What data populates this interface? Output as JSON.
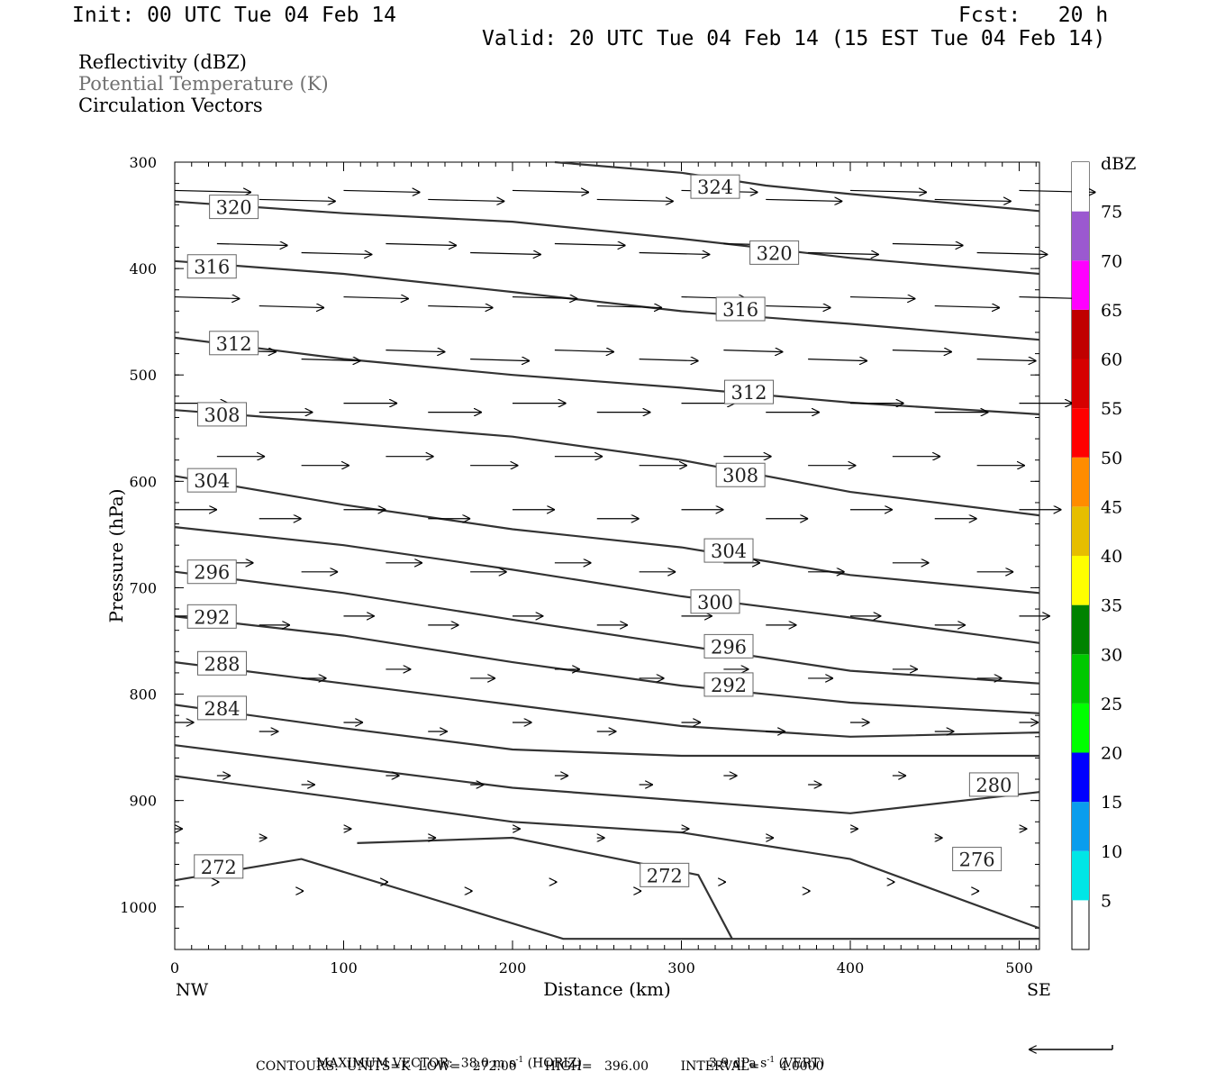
{
  "header": {
    "init": "Init: 00 UTC Tue 04 Feb 14",
    "fcst": "Fcst:   20 h",
    "valid": "Valid: 20 UTC Tue 04 Feb 14 (15 EST Tue 04 Feb 14)"
  },
  "legend": {
    "line1": "Reflectivity (dBZ)",
    "line2": "Potential Temperature (K)",
    "line3": "Circulation Vectors"
  },
  "chart_data": {
    "type": "line",
    "plot": "vertical cross-section",
    "xlabel": "Distance (km)",
    "ylabel": "Pressure (hPa)",
    "xlim": [
      0,
      512
    ],
    "ylim": [
      1040,
      300
    ],
    "x_ticks": [
      "0",
      "100",
      "200",
      "300",
      "400",
      "500"
    ],
    "y_ticks": [
      "300",
      "400",
      "500",
      "600",
      "700",
      "800",
      "900",
      "1000"
    ],
    "x_ends": {
      "left": "NW",
      "right": "SE"
    },
    "series": [
      {
        "name": "324",
        "label_at": [
          320,
          323
        ],
        "points": [
          [
            225,
            300
          ],
          [
            300,
            310
          ],
          [
            350,
            322
          ],
          [
            400,
            330
          ],
          [
            512,
            346
          ]
        ]
      },
      {
        "name": "320",
        "label_at": [
          35,
          342
        ],
        "points": [
          [
            0,
            337
          ],
          [
            100,
            348
          ],
          [
            200,
            356
          ],
          [
            300,
            372
          ],
          [
            400,
            390
          ],
          [
            512,
            405
          ]
        ]
      },
      {
        "name": "320",
        "label_at": [
          355,
          385
        ],
        "points": []
      },
      {
        "name": "316",
        "label_at": [
          22,
          398
        ],
        "points": [
          [
            0,
            393
          ],
          [
            100,
            405
          ],
          [
            200,
            422
          ],
          [
            300,
            440
          ],
          [
            400,
            452
          ],
          [
            512,
            467
          ]
        ]
      },
      {
        "name": "316",
        "label_at": [
          335,
          438
        ],
        "points": []
      },
      {
        "name": "312",
        "label_at": [
          35,
          470
        ],
        "points": [
          [
            0,
            465
          ],
          [
            100,
            485
          ],
          [
            200,
            500
          ],
          [
            300,
            512
          ],
          [
            400,
            526
          ],
          [
            512,
            537
          ]
        ]
      },
      {
        "name": "312",
        "label_at": [
          340,
          516
        ],
        "points": []
      },
      {
        "name": "308",
        "label_at": [
          28,
          537
        ],
        "points": [
          [
            0,
            533
          ],
          [
            100,
            545
          ],
          [
            200,
            558
          ],
          [
            300,
            580
          ],
          [
            400,
            610
          ],
          [
            512,
            632
          ]
        ]
      },
      {
        "name": "308",
        "label_at": [
          335,
          594
        ],
        "points": []
      },
      {
        "name": "304",
        "label_at": [
          22,
          599
        ],
        "points": [
          [
            0,
            595
          ],
          [
            100,
            622
          ],
          [
            200,
            645
          ],
          [
            300,
            662
          ],
          [
            400,
            688
          ],
          [
            512,
            705
          ]
        ]
      },
      {
        "name": "304",
        "label_at": [
          328,
          665
        ],
        "points": []
      },
      {
        "name": "300",
        "label_at": [
          320,
          713
        ],
        "points": [
          [
            0,
            643
          ],
          [
            100,
            660
          ],
          [
            200,
            683
          ],
          [
            300,
            708
          ],
          [
            400,
            728
          ],
          [
            512,
            752
          ]
        ]
      },
      {
        "name": "296",
        "label_at": [
          22,
          685
        ],
        "points": [
          [
            0,
            685
          ],
          [
            100,
            705
          ],
          [
            200,
            730
          ],
          [
            300,
            754
          ],
          [
            400,
            778
          ],
          [
            512,
            790
          ]
        ]
      },
      {
        "name": "296",
        "label_at": [
          328,
          755
        ],
        "points": []
      },
      {
        "name": "292",
        "label_at": [
          22,
          727
        ],
        "points": [
          [
            0,
            727
          ],
          [
            100,
            745
          ],
          [
            200,
            770
          ],
          [
            300,
            792
          ],
          [
            400,
            808
          ],
          [
            512,
            818
          ]
        ]
      },
      {
        "name": "292",
        "label_at": [
          328,
          791
        ],
        "points": []
      },
      {
        "name": "288",
        "label_at": [
          28,
          771
        ],
        "points": [
          [
            0,
            770
          ],
          [
            100,
            790
          ],
          [
            200,
            810
          ],
          [
            300,
            830
          ],
          [
            400,
            840
          ],
          [
            512,
            836
          ]
        ]
      },
      {
        "name": "284",
        "label_at": [
          28,
          813
        ],
        "points": [
          [
            0,
            810
          ],
          [
            100,
            832
          ],
          [
            200,
            852
          ],
          [
            300,
            858
          ],
          [
            400,
            858
          ],
          [
            512,
            858
          ]
        ]
      },
      {
        "name": "280",
        "label_at": [
          485,
          885
        ],
        "points": [
          [
            0,
            848
          ],
          [
            100,
            868
          ],
          [
            200,
            888
          ],
          [
            300,
            900
          ],
          [
            400,
            912
          ],
          [
            512,
            892
          ]
        ]
      },
      {
        "name": "276",
        "label_at": [
          475,
          955
        ],
        "points": [
          [
            0,
            877
          ],
          [
            100,
            898
          ],
          [
            200,
            920
          ],
          [
            300,
            930
          ],
          [
            400,
            955
          ],
          [
            512,
            1020
          ]
        ]
      },
      {
        "name": "272",
        "label_at": [
          26,
          962
        ],
        "points": [
          [
            0,
            975
          ],
          [
            75,
            955
          ],
          [
            230,
            1030
          ],
          [
            512,
            1030
          ]
        ]
      },
      {
        "name": "272",
        "label_at": [
          290,
          970
        ],
        "points": [
          [
            108,
            940
          ],
          [
            200,
            935
          ],
          [
            310,
            970
          ],
          [
            330,
            1030
          ]
        ]
      }
    ],
    "vectors_note": "Circulation vectors: mostly eastward (west-to-east) flow, strongest aloft (~38 m/s), decreasing toward the surface",
    "colorbar": {
      "title": "dBZ",
      "levels": [
        "5",
        "10",
        "15",
        "20",
        "25",
        "30",
        "35",
        "40",
        "45",
        "50",
        "55",
        "60",
        "65",
        "70",
        "75"
      ],
      "colors": [
        "#00e6e6",
        "#0a9ded",
        "#0000ff",
        "#00ff00",
        "#00c800",
        "#008200",
        "#ffff00",
        "#e6be00",
        "#ff8c00",
        "#ff0000",
        "#d60000",
        "#c00000",
        "#ff00ff",
        "#9b59d0",
        "#ffffff"
      ]
    }
  },
  "footer": {
    "max_vector_label": "MAXIMUM VECTOR:",
    "horiz_value": "38.0 m s",
    "horiz_exp": "-1",
    "horiz_unit": "(HORIZ)",
    "vert_value": "3.9 dPa s",
    "vert_exp": "-1",
    "vert_unit": "(VERT)",
    "contours": "CONTOURS:  UNITS=K  LOW=   272.00       HIGH=   396.00        INTERVAL=     4.0000"
  }
}
